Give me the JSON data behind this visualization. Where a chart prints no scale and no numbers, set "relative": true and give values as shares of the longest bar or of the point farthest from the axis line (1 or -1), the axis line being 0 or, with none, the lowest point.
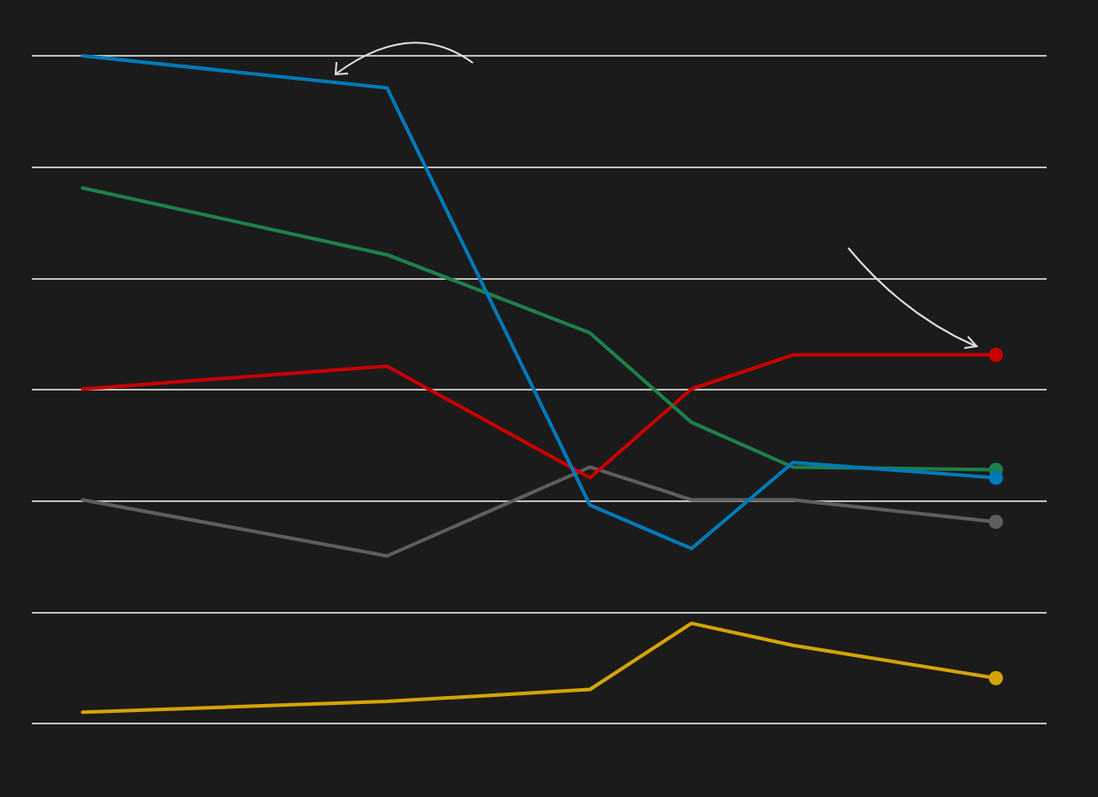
{
  "chart_data": {
    "type": "line",
    "relative": true,
    "grid": "y",
    "tick_labels": false,
    "line_style": "solid",
    "categories": [
      null,
      null,
      null,
      null,
      null,
      null,
      null,
      null,
      null,
      null
    ],
    "series": [
      {
        "color": "#5e5e5e",
        "values": [
          0.335,
          null,
          null,
          0.251,
          null,
          0.384,
          0.335,
          0.335,
          null,
          0.302
        ]
      },
      {
        "color": "#d4a306",
        "values": [
          0.017,
          null,
          null,
          0.033,
          null,
          0.051,
          0.15,
          0.117,
          null,
          0.068
        ]
      },
      {
        "color": "#c80000",
        "values": [
          0.501,
          null,
          null,
          0.535,
          null,
          0.368,
          0.501,
          0.552,
          null,
          0.552
        ]
      },
      {
        "color": "#1f8049",
        "values": [
          0.802,
          null,
          null,
          0.702,
          null,
          0.585,
          0.451,
          0.384,
          null,
          0.38
        ]
      },
      {
        "color": "#0079b8",
        "values": [
          1.0,
          null,
          null,
          0.952,
          null,
          0.327,
          0.262,
          0.391,
          null,
          0.368
        ]
      }
    ]
  }
}
